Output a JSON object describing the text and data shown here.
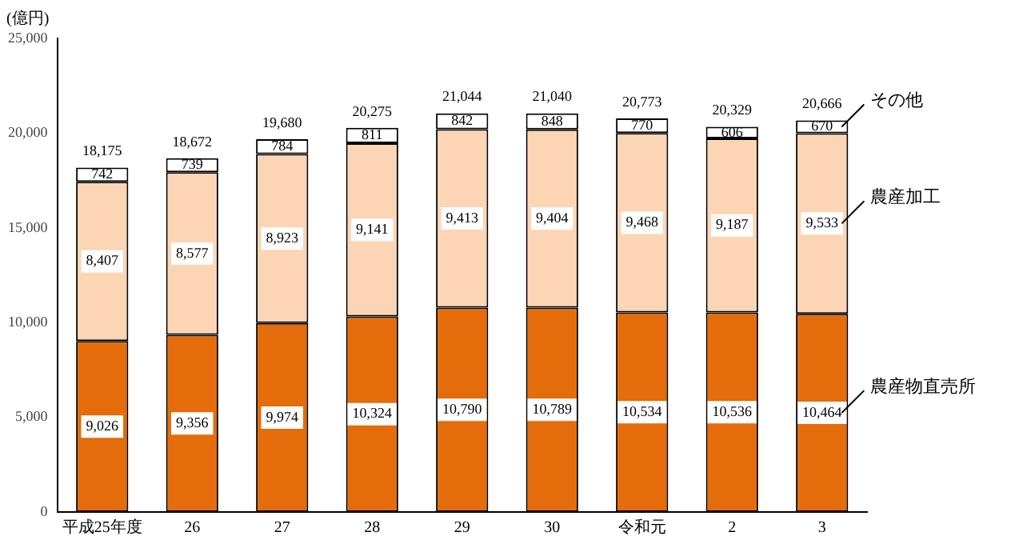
{
  "chart_data": {
    "type": "bar",
    "stacked": true,
    "ylabel": "(億円)",
    "categories": [
      "平成25年度",
      "26",
      "27",
      "28",
      "29",
      "30",
      "令和元",
      "2",
      "3"
    ],
    "series": [
      {
        "name": "農産物直売所",
        "color": "#e46c0a",
        "values": [
          9026,
          9356,
          9974,
          10324,
          10790,
          10789,
          10534,
          10536,
          10464
        ],
        "value_labels": [
          "9,026",
          "9,356",
          "9,974",
          "10,324",
          "10,790",
          "10,789",
          "10,534",
          "10,536",
          "10,464"
        ]
      },
      {
        "name": "農産加工",
        "color": "#fcd5b5",
        "values": [
          8407,
          8577,
          8923,
          9141,
          9413,
          9404,
          9468,
          9187,
          9533
        ],
        "value_labels": [
          "8,407",
          "8,577",
          "8,923",
          "9,141",
          "9,413",
          "9,404",
          "9,468",
          "9,187",
          "9,533"
        ]
      },
      {
        "name": "その他",
        "color": "#ffffff",
        "values": [
          742,
          739,
          784,
          811,
          842,
          848,
          770,
          606,
          670
        ],
        "value_labels": [
          "742",
          "739",
          "784",
          "811",
          "842",
          "848",
          "770",
          "606",
          "670"
        ]
      }
    ],
    "totals": [
      "18,175",
      "18,672",
      "19,680",
      "20,275",
      "21,044",
      "21,040",
      "20,773",
      "20,329",
      "20,666"
    ],
    "ylim": [
      0,
      25000
    ],
    "yticks": [
      {
        "value": 0,
        "label": "0"
      },
      {
        "value": 5000,
        "label": "5,000"
      },
      {
        "value": 10000,
        "label": "10,000"
      },
      {
        "value": 15000,
        "label": "15,000"
      },
      {
        "value": 20000,
        "label": "20,000"
      },
      {
        "value": 25000,
        "label": "25,000"
      }
    ],
    "grid": false,
    "legend": false
  }
}
